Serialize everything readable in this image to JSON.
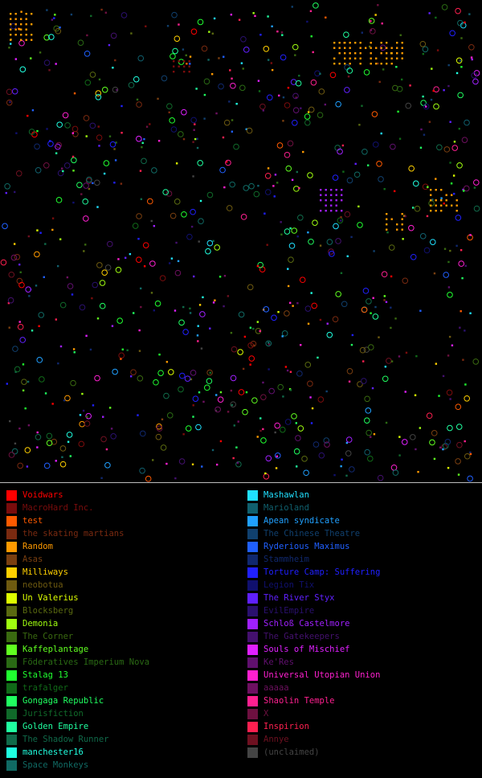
{
  "legend": {
    "left": [
      {
        "label": "Voidwars",
        "color": "#ff0000"
      },
      {
        "label": "MacroHard Inc.",
        "color": "#7a0c0c"
      },
      {
        "label": "test",
        "color": "#ff5a00"
      },
      {
        "label": "the skating martians",
        "color": "#7a2a10"
      },
      {
        "label": "Random",
        "color": "#ff9a00"
      },
      {
        "label": "Asas",
        "color": "#7a3f10"
      },
      {
        "label": "Milliways",
        "color": "#ffd000"
      },
      {
        "label": "neobotua",
        "color": "#6e5a10"
      },
      {
        "label": "Un Valerius",
        "color": "#ddff00"
      },
      {
        "label": "Blocksberg",
        "color": "#5a6a10"
      },
      {
        "label": "Demonia",
        "color": "#a0ff10"
      },
      {
        "label": "The Corner",
        "color": "#3a6a10"
      },
      {
        "label": "Kaffeplantage",
        "color": "#60ff20"
      },
      {
        "label": "Föderatives Imperium Nova",
        "color": "#2a6a14"
      },
      {
        "label": "Stalag 13",
        "color": "#20ff30"
      },
      {
        "label": "trafalger",
        "color": "#106a18"
      },
      {
        "label": "Gongaga Republic",
        "color": "#20ff60"
      },
      {
        "label": "Jurisfiction",
        "color": "#106a2a"
      },
      {
        "label": "Golden Empire",
        "color": "#20ffa0"
      },
      {
        "label": "The Shadow Runner",
        "color": "#106a4a"
      },
      {
        "label": "manchester16",
        "color": "#20ffe0"
      },
      {
        "label": "Space Monkeys",
        "color": "#106a64"
      }
    ],
    "right": [
      {
        "label": "Mashawlan",
        "color": "#20e0ff"
      },
      {
        "label": "Marioland",
        "color": "#10606e"
      },
      {
        "label": "Apean syndicate",
        "color": "#20a0ff"
      },
      {
        "label": "The Chinese Theatre",
        "color": "#10406e"
      },
      {
        "label": "Ryderious Maximus",
        "color": "#2060ff"
      },
      {
        "label": "Stammheim",
        "color": "#10286e"
      },
      {
        "label": "Torture Camp: Suffering",
        "color": "#2020ff"
      },
      {
        "label": "Legion Tix",
        "color": "#10106e"
      },
      {
        "label": "The River Styx",
        "color": "#6020ff"
      },
      {
        "label": "EvilEmpire",
        "color": "#2a106e"
      },
      {
        "label": "Schloß Castelmore",
        "color": "#a020ff"
      },
      {
        "label": "The Gatekeepers",
        "color": "#44106e"
      },
      {
        "label": "Souls of Mischief",
        "color": "#e020ff"
      },
      {
        "label": "Ke'Res",
        "color": "#60106e"
      },
      {
        "label": "Universal Utopian Union",
        "color": "#ff20d0"
      },
      {
        "label": "aaaaa",
        "color": "#6e1060"
      },
      {
        "label": "Shaolin Temple",
        "color": "#ff2090"
      },
      {
        "label": "X",
        "color": "#6e1040"
      },
      {
        "label": "Inspirion",
        "color": "#ff2050"
      },
      {
        "label": "Annye",
        "color": "#6e1020"
      },
      {
        "label": "(unclaimed)",
        "color": "#444444"
      }
    ]
  }
}
